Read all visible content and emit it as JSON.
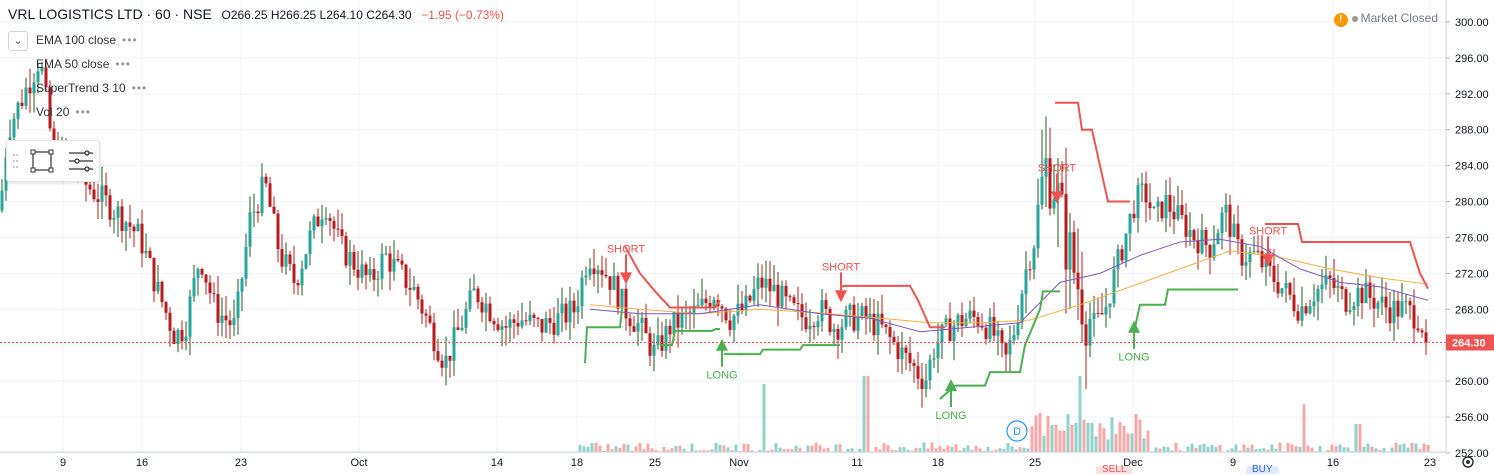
{
  "header": {
    "symbol": "VRL LOGISTICS LTD · 60 · NSE",
    "ohlc": "O266.25 H266.25 L264.10 C264.30",
    "change": "−1.95 (−0.73%)"
  },
  "indicators": [
    {
      "label": "EMA 100 close",
      "dots": "•••"
    },
    {
      "label": "EMA 50 close",
      "dots": "•••"
    },
    {
      "label": "SuperTrend 3 10",
      "dots": "•••"
    },
    {
      "label": "Vol 20",
      "dots": "•••"
    }
  ],
  "collapse_icon": "chevron-down-icon",
  "toolbox_icons": [
    "rectangle-icon",
    "object-tree-icon"
  ],
  "market_status": {
    "warn": "!",
    "text": "Market Closed"
  },
  "bottom_tabs": [
    {
      "label": "SELL",
      "color": "#ef5350"
    },
    {
      "label": "BUY",
      "color": "#2962ff"
    }
  ],
  "chart_data": {
    "type": "candlestick",
    "ylim": [
      252,
      302
    ],
    "y_ticks": [
      "300.00",
      "296.00",
      "292.00",
      "288.00",
      "284.00",
      "280.00",
      "276.00",
      "272.00",
      "268.00",
      "264.00",
      "260.00",
      "256.00",
      "252.00"
    ],
    "x_ticks": [
      "9",
      "16",
      "23",
      "Oct",
      "14",
      "18",
      "25",
      "Nov",
      "11",
      "18",
      "25",
      "Dec",
      "9",
      "16",
      "23"
    ],
    "last_price": "264.30",
    "colors": {
      "up": "#26a69a",
      "down": "#ef5350",
      "up_body": "#1b5e20",
      "down_body": "#b71c1c",
      "ema100": "#f5b041",
      "ema50": "#7e57c2",
      "st_up": "#4caf50",
      "st_down": "#ef5350"
    },
    "price_path": [
      [
        0,
        279
      ],
      [
        8,
        288
      ],
      [
        20,
        291
      ],
      [
        40,
        296
      ],
      [
        55,
        284
      ],
      [
        70,
        286
      ],
      [
        85,
        282
      ],
      [
        105,
        280
      ],
      [
        125,
        278
      ],
      [
        140,
        276
      ],
      [
        158,
        270
      ],
      [
        175,
        265
      ],
      [
        185,
        266
      ],
      [
        200,
        274
      ],
      [
        215,
        268
      ],
      [
        235,
        266
      ],
      [
        250,
        278
      ],
      [
        265,
        282
      ],
      [
        280,
        274
      ],
      [
        295,
        271
      ],
      [
        310,
        276
      ],
      [
        325,
        280
      ],
      [
        340,
        275
      ],
      [
        355,
        273
      ],
      [
        370,
        271
      ],
      [
        385,
        274
      ],
      [
        400,
        272
      ],
      [
        415,
        270
      ],
      [
        430,
        266
      ],
      [
        445,
        262
      ],
      [
        460,
        266
      ],
      [
        475,
        270
      ],
      [
        490,
        268
      ],
      [
        505,
        266
      ],
      [
        520,
        267
      ],
      [
        540,
        266
      ],
      [
        560,
        267
      ],
      [
        575,
        268
      ],
      [
        588,
        274
      ],
      [
        600,
        273
      ],
      [
        612,
        271
      ],
      [
        625,
        268
      ],
      [
        640,
        266
      ],
      [
        655,
        263
      ],
      [
        670,
        266
      ],
      [
        685,
        267
      ],
      [
        700,
        268
      ],
      [
        715,
        270
      ],
      [
        730,
        267
      ],
      [
        745,
        268
      ],
      [
        760,
        271
      ],
      [
        775,
        270
      ],
      [
        790,
        268
      ],
      [
        805,
        267
      ],
      [
        820,
        268
      ],
      [
        835,
        266
      ],
      [
        850,
        267
      ],
      [
        865,
        267
      ],
      [
        880,
        266
      ],
      [
        895,
        264
      ],
      [
        910,
        262
      ],
      [
        925,
        260
      ],
      [
        935,
        264
      ],
      [
        950,
        266
      ],
      [
        965,
        267
      ],
      [
        980,
        267
      ],
      [
        995,
        265
      ],
      [
        1005,
        262
      ],
      [
        1015,
        266
      ],
      [
        1025,
        272
      ],
      [
        1035,
        276
      ],
      [
        1045,
        284
      ],
      [
        1055,
        282
      ],
      [
        1065,
        276
      ],
      [
        1075,
        272
      ],
      [
        1085,
        268
      ],
      [
        1095,
        266
      ],
      [
        1105,
        268
      ],
      [
        1115,
        272
      ],
      [
        1125,
        276
      ],
      [
        1135,
        280
      ],
      [
        1145,
        281
      ],
      [
        1155,
        278
      ],
      [
        1165,
        280
      ],
      [
        1180,
        278
      ],
      [
        1195,
        276
      ],
      [
        1210,
        275
      ],
      [
        1225,
        279
      ],
      [
        1240,
        274
      ],
      [
        1255,
        274
      ],
      [
        1270,
        272
      ],
      [
        1285,
        270
      ],
      [
        1300,
        268
      ],
      [
        1315,
        270
      ],
      [
        1330,
        271
      ],
      [
        1345,
        269
      ],
      [
        1360,
        270
      ],
      [
        1375,
        269
      ],
      [
        1390,
        268
      ],
      [
        1405,
        268
      ],
      [
        1420,
        267
      ],
      [
        1428,
        264.3
      ]
    ],
    "ema100_path": [
      [
        590,
        268.5
      ],
      [
        640,
        268
      ],
      [
        700,
        267.5
      ],
      [
        760,
        268
      ],
      [
        820,
        267.6
      ],
      [
        880,
        267
      ],
      [
        930,
        266.5
      ],
      [
        980,
        266.5
      ],
      [
        1030,
        266.8
      ],
      [
        1080,
        268.5
      ],
      [
        1130,
        270.5
      ],
      [
        1180,
        272.5
      ],
      [
        1230,
        274.5
      ],
      [
        1280,
        273.8
      ],
      [
        1330,
        272.5
      ],
      [
        1380,
        271.5
      ],
      [
        1428,
        270.8
      ]
    ],
    "ema50_path": [
      [
        590,
        268
      ],
      [
        640,
        267.5
      ],
      [
        700,
        267.5
      ],
      [
        760,
        268.5
      ],
      [
        820,
        267.5
      ],
      [
        870,
        267
      ],
      [
        920,
        265.5
      ],
      [
        970,
        266
      ],
      [
        1020,
        266.5
      ],
      [
        1060,
        271
      ],
      [
        1100,
        272
      ],
      [
        1140,
        274
      ],
      [
        1180,
        275.5
      ],
      [
        1220,
        275.8
      ],
      [
        1260,
        275
      ],
      [
        1300,
        272.5
      ],
      [
        1340,
        271
      ],
      [
        1380,
        270.5
      ],
      [
        1428,
        269
      ]
    ],
    "supertrend_up": [
      [
        [
          585,
          262
        ],
        [
          587,
          266
        ],
        [
          620,
          266
        ],
        [
          622,
          268
        ]
      ],
      [
        [
          660,
          264
        ],
        [
          672,
          264
        ],
        [
          675,
          265.6
        ],
        [
          712,
          265.6
        ],
        [
          716,
          265.8
        ],
        [
          720,
          265.8
        ]
      ],
      [
        [
          724,
          263
        ],
        [
          760,
          263
        ],
        [
          763,
          263.5
        ],
        [
          800,
          263.5
        ],
        [
          803,
          264
        ],
        [
          840,
          264
        ]
      ],
      [
        [
          940,
          258
        ],
        [
          955,
          259.5
        ],
        [
          985,
          259.5
        ],
        [
          990,
          261
        ],
        [
          1020,
          261
        ],
        [
          1025,
          264
        ],
        [
          1040,
          268
        ],
        [
          1043,
          270
        ],
        [
          1060,
          270
        ]
      ],
      [
        [
          1135,
          266
        ],
        [
          1140,
          268.5
        ],
        [
          1165,
          268.5
        ],
        [
          1168,
          270.2
        ],
        [
          1238,
          270.2
        ]
      ]
    ],
    "supertrend_down": [
      [
        [
          625,
          275
        ],
        [
          640,
          272
        ],
        [
          655,
          270
        ],
        [
          670,
          268.2
        ],
        [
          715,
          268.2
        ],
        [
          720,
          269
        ]
      ],
      [
        [
          840,
          270.5
        ],
        [
          845,
          270.6
        ],
        [
          910,
          270.6
        ],
        [
          918,
          269
        ],
        [
          930,
          266
        ],
        [
          945,
          266
        ]
      ],
      [
        [
          1055,
          291
        ],
        [
          1060,
          291
        ],
        [
          1078,
          291
        ],
        [
          1082,
          288
        ],
        [
          1092,
          288
        ],
        [
          1100,
          284
        ],
        [
          1108,
          280
        ],
        [
          1130,
          280
        ]
      ],
      [
        [
          1265,
          277.5
        ],
        [
          1270,
          277.5
        ],
        [
          1298,
          277.5
        ],
        [
          1302,
          275.5
        ],
        [
          1410,
          275.5
        ],
        [
          1420,
          272
        ],
        [
          1428,
          270.3
        ]
      ]
    ],
    "signals": [
      {
        "type": "short",
        "x": 626,
        "price": 271,
        "label": "SHORT"
      },
      {
        "type": "long",
        "x": 722,
        "price": 264.5,
        "label": "LONG"
      },
      {
        "type": "short",
        "x": 841,
        "price": 269,
        "label": "SHORT"
      },
      {
        "type": "long",
        "x": 951,
        "price": 260,
        "label": "LONG"
      },
      {
        "type": "short",
        "x": 1057,
        "price": 280,
        "label": "SHORT"
      },
      {
        "type": "long",
        "x": 1134,
        "price": 266.5,
        "label": "LONG"
      },
      {
        "type": "short",
        "x": 1268,
        "price": 273,
        "label": "SHORT"
      }
    ],
    "dividend": {
      "x": 1017,
      "label": "D"
    },
    "volume_region": [
      580,
      1430
    ],
    "volume_spikes": [
      [
        765,
        0.85
      ],
      [
        866,
        0.95
      ],
      [
        1048,
        0.45
      ],
      [
        1080,
        0.95
      ],
      [
        1305,
        0.6
      ],
      [
        1358,
        0.35
      ]
    ]
  }
}
